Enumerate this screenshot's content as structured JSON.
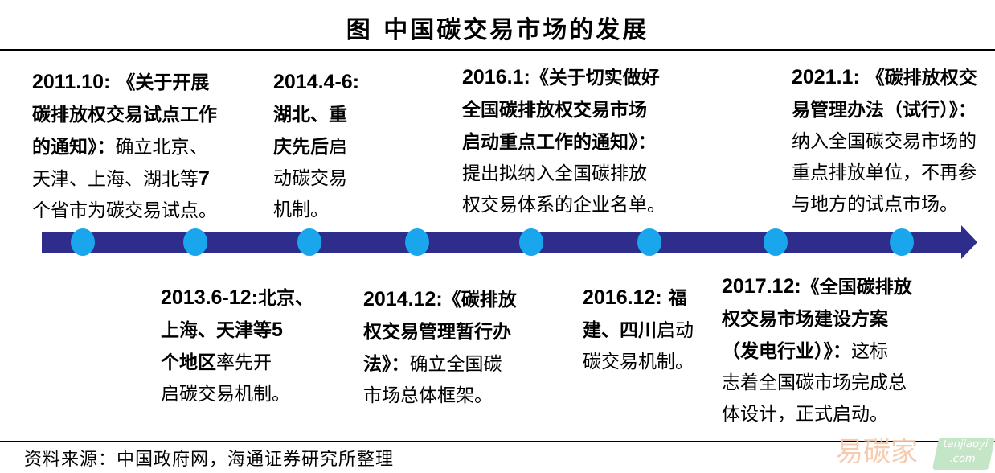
{
  "title": "图  中国碳交易市场的发展",
  "colors": {
    "arrow": "#2e2d8c",
    "dot": "#19a6ec"
  },
  "events": [
    {
      "pos": "top",
      "lines": [
        [
          {
            "t": "2011.10:",
            "s": "d"
          },
          {
            "t": " 《关于开展",
            "s": "b"
          }
        ],
        [
          {
            "t": "碳排放权交易试点工作",
            "s": "b"
          }
        ],
        [
          {
            "t": "的通知》：",
            "s": "b"
          },
          {
            "t": "确立北京、",
            "s": "n"
          }
        ],
        [
          {
            "t": "天津、上海、湖北等",
            "s": "n"
          },
          {
            "t": "7",
            "s": "d"
          }
        ],
        [
          {
            "t": "个省市为碳交易试点。",
            "s": "n"
          }
        ]
      ]
    },
    {
      "pos": "bottom",
      "lines": [
        [
          {
            "t": "2013.6-12:",
            "s": "d"
          },
          {
            "t": "北京、",
            "s": "b"
          }
        ],
        [
          {
            "t": "上海、天津等",
            "s": "b"
          },
          {
            "t": "5",
            "s": "d"
          }
        ],
        [
          {
            "t": "个地区",
            "s": "b"
          },
          {
            "t": "率先开",
            "s": "n"
          }
        ],
        [
          {
            "t": "启碳交易机制。",
            "s": "n"
          }
        ]
      ]
    },
    {
      "pos": "top",
      "lines": [
        [
          {
            "t": "2014.4-6:",
            "s": "d"
          }
        ],
        [
          {
            "t": "湖北、重",
            "s": "b"
          }
        ],
        [
          {
            "t": "庆先后",
            "s": "b"
          },
          {
            "t": "启",
            "s": "n"
          }
        ],
        [
          {
            "t": "动碳交易",
            "s": "n"
          }
        ],
        [
          {
            "t": "机制。",
            "s": "n"
          }
        ]
      ]
    },
    {
      "pos": "bottom",
      "lines": [
        [
          {
            "t": "2014.12:",
            "s": "d"
          },
          {
            "t": "《碳排放",
            "s": "b"
          }
        ],
        [
          {
            "t": "权交易管理暂行办",
            "s": "b"
          }
        ],
        [
          {
            "t": "法》：",
            "s": "b"
          },
          {
            "t": "确立全国碳",
            "s": "n"
          }
        ],
        [
          {
            "t": "市场总体框架。",
            "s": "n"
          }
        ]
      ]
    },
    {
      "pos": "top",
      "lines": [
        [
          {
            "t": "2016.1:",
            "s": "d"
          },
          {
            "t": "《关于切实做好",
            "s": "b"
          }
        ],
        [
          {
            "t": "全国碳排放权交易市场",
            "s": "b"
          }
        ],
        [
          {
            "t": "启动重点工作的通知》：",
            "s": "b"
          }
        ],
        [
          {
            "t": "提出拟纳入全国碳排放",
            "s": "n"
          }
        ],
        [
          {
            "t": "权交易体系的企业名单。",
            "s": "n"
          }
        ]
      ]
    },
    {
      "pos": "bottom",
      "lines": [
        [
          {
            "t": "2016.12:",
            "s": "d"
          },
          {
            "t": " 福",
            "s": "b"
          }
        ],
        [
          {
            "t": "建、四川",
            "s": "b"
          },
          {
            "t": "启动",
            "s": "n"
          }
        ],
        [
          {
            "t": "碳交易机制。",
            "s": "n"
          }
        ]
      ]
    },
    {
      "pos": "bottom",
      "lines": [
        [
          {
            "t": "2017.12:",
            "s": "d"
          },
          {
            "t": "《全国碳排放",
            "s": "b"
          }
        ],
        [
          {
            "t": "权交易市场建设方案",
            "s": "b"
          }
        ],
        [
          {
            "t": "（发电行业）》：",
            "s": "b"
          },
          {
            "t": "这标",
            "s": "n"
          }
        ],
        [
          {
            "t": "志着全国碳市场完成总",
            "s": "n"
          }
        ],
        [
          {
            "t": "体设计，正式启动。",
            "s": "n"
          }
        ]
      ]
    },
    {
      "pos": "top",
      "lines": [
        [
          {
            "t": "2021.1:",
            "s": "d"
          },
          {
            "t": " 《碳排放权交",
            "s": "b"
          }
        ],
        [
          {
            "t": "易管理办法（试行）》：",
            "s": "b"
          }
        ],
        [
          {
            "t": "纳入全国碳交易市场的",
            "s": "n"
          }
        ],
        [
          {
            "t": "重点排放单位，不再参",
            "s": "n"
          }
        ],
        [
          {
            "t": "与地方的试点市场。",
            "s": "n"
          }
        ]
      ]
    }
  ],
  "source": "资料来源：中国政府网，海通证券研究所整理",
  "watermark": {
    "cn": "易碳家",
    "en1": "tanjiaoyi",
    ".en2": ".com",
    "en2": ".com"
  }
}
